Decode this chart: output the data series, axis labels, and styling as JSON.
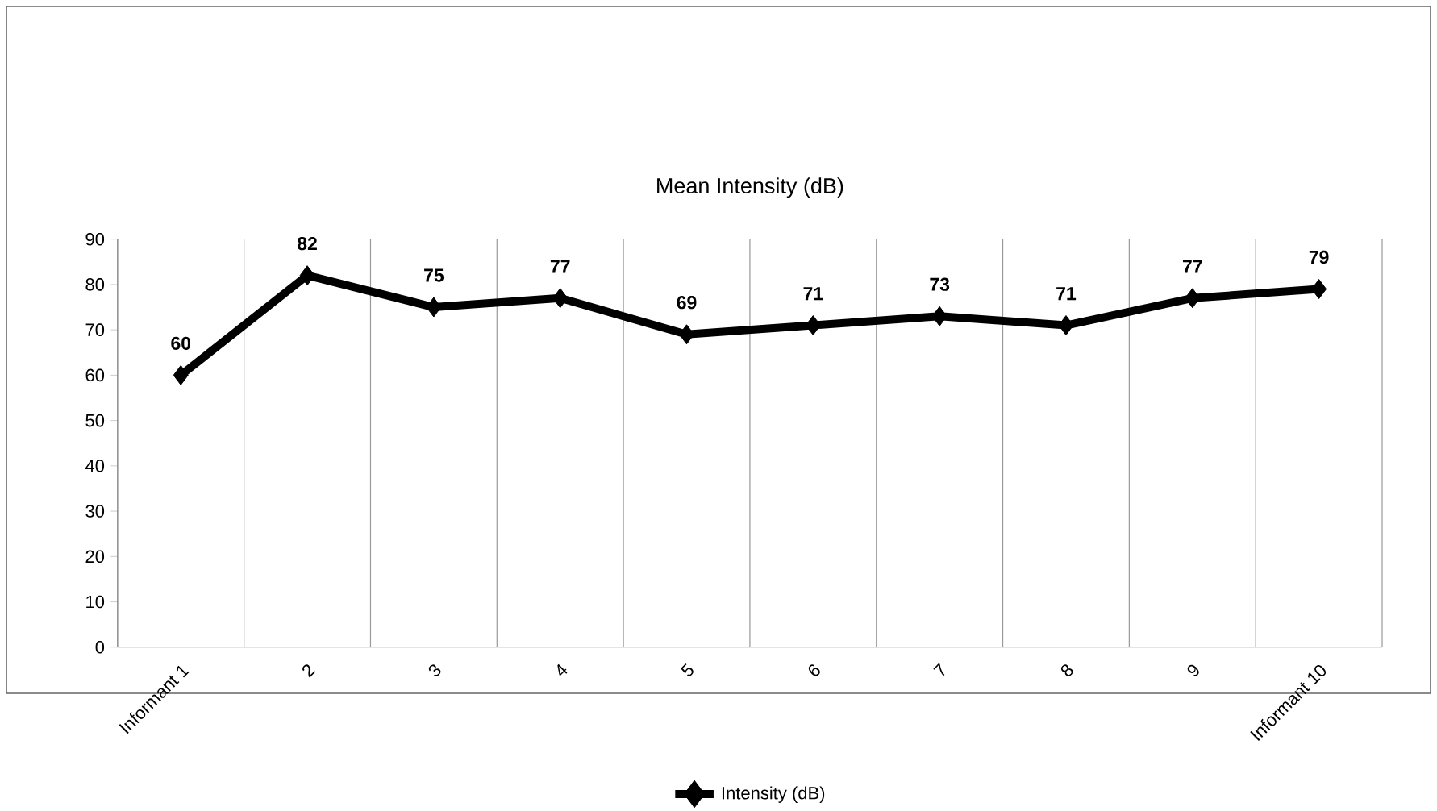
{
  "chart_data": {
    "type": "line",
    "title": "Mean Intensity (dB)",
    "categories": [
      "Informant 1",
      "2",
      "3",
      "4",
      "5",
      "6",
      "7",
      "8",
      "9",
      "Informant 10"
    ],
    "series": [
      {
        "name": "Intensity (dB)",
        "color": "#000000",
        "values": [
          60,
          82,
          75,
          77,
          69,
          71,
          73,
          71,
          77,
          79
        ]
      }
    ],
    "ylim": [
      0,
      90
    ],
    "yticks": [
      0,
      10,
      20,
      30,
      40,
      50,
      60,
      70,
      80,
      90
    ],
    "grid": "x",
    "legend": "bottom",
    "marker": "diamond",
    "line_style": "solid",
    "data_labels": true
  }
}
